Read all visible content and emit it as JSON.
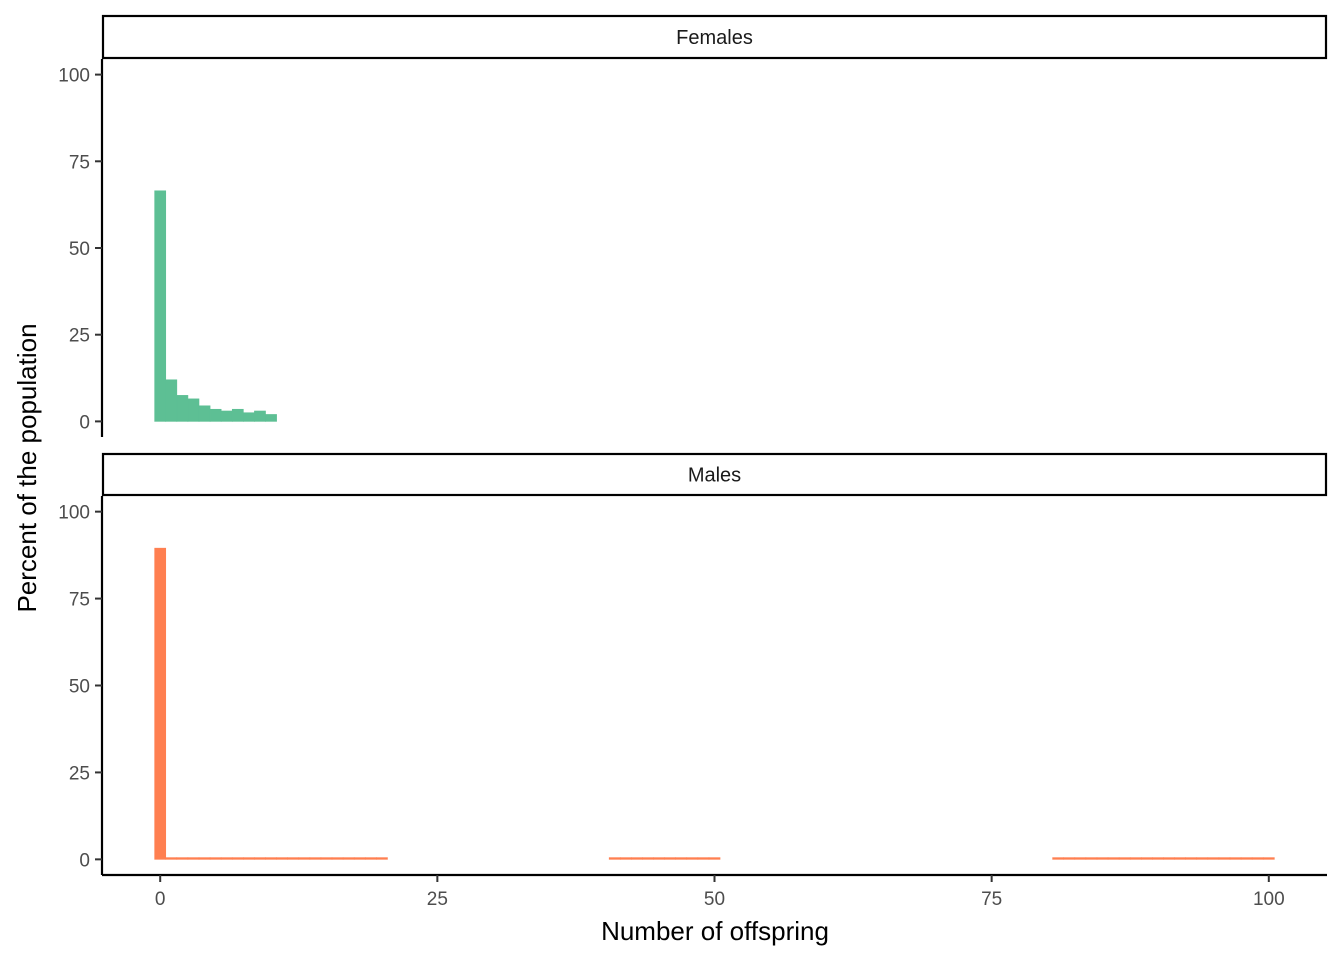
{
  "chart_data": {
    "type": "bar",
    "xlabel": "Number of offspring",
    "ylabel": "Percent of the population",
    "xlim": [
      -5.25,
      105.25
    ],
    "ylim": [
      -4.5,
      104.5
    ],
    "x_ticks": [
      0,
      25,
      50,
      75,
      100
    ],
    "y_ticks": [
      0,
      25,
      50,
      75,
      100
    ],
    "bin_width": 1,
    "grid": false,
    "panels": [
      {
        "name": "Females",
        "color": "#5DBF94",
        "bins": [
          {
            "x": 0,
            "y": 66.5
          },
          {
            "x": 1,
            "y": 12.0
          },
          {
            "x": 2,
            "y": 7.5
          },
          {
            "x": 3,
            "y": 6.5
          },
          {
            "x": 4,
            "y": 4.5
          },
          {
            "x": 5,
            "y": 3.5
          },
          {
            "x": 6,
            "y": 3.0
          },
          {
            "x": 7,
            "y": 3.5
          },
          {
            "x": 8,
            "y": 2.5
          },
          {
            "x": 9,
            "y": 3.0
          },
          {
            "x": 10,
            "y": 2.0
          }
        ]
      },
      {
        "name": "Males",
        "color": "#FF7F50",
        "bins": [
          {
            "x": 0,
            "y": 89.5
          },
          {
            "x": 1,
            "y": 0.5
          },
          {
            "x": 2,
            "y": 0.5
          },
          {
            "x": 3,
            "y": 0.5
          },
          {
            "x": 4,
            "y": 0.5
          },
          {
            "x": 5,
            "y": 0.5
          },
          {
            "x": 6,
            "y": 0.5
          },
          {
            "x": 7,
            "y": 0.5
          },
          {
            "x": 8,
            "y": 0.5
          },
          {
            "x": 9,
            "y": 0.5
          },
          {
            "x": 10,
            "y": 0.5
          },
          {
            "x": 11,
            "y": 0.5
          },
          {
            "x": 12,
            "y": 0.5
          },
          {
            "x": 13,
            "y": 0.5
          },
          {
            "x": 14,
            "y": 0.5
          },
          {
            "x": 15,
            "y": 0.5
          },
          {
            "x": 16,
            "y": 0.5
          },
          {
            "x": 17,
            "y": 0.5
          },
          {
            "x": 18,
            "y": 0.5
          },
          {
            "x": 19,
            "y": 0.5
          },
          {
            "x": 20,
            "y": 0.5
          },
          {
            "x": 41,
            "y": 0.5
          },
          {
            "x": 42,
            "y": 0.5
          },
          {
            "x": 43,
            "y": 0.5
          },
          {
            "x": 44,
            "y": 0.5
          },
          {
            "x": 45,
            "y": 0.5
          },
          {
            "x": 46,
            "y": 0.5
          },
          {
            "x": 47,
            "y": 0.5
          },
          {
            "x": 48,
            "y": 0.5
          },
          {
            "x": 49,
            "y": 0.5
          },
          {
            "x": 50,
            "y": 0.5
          },
          {
            "x": 81,
            "y": 0.5
          },
          {
            "x": 82,
            "y": 0.5
          },
          {
            "x": 83,
            "y": 0.5
          },
          {
            "x": 84,
            "y": 0.5
          },
          {
            "x": 85,
            "y": 0.5
          },
          {
            "x": 86,
            "y": 0.5
          },
          {
            "x": 87,
            "y": 0.5
          },
          {
            "x": 88,
            "y": 0.5
          },
          {
            "x": 89,
            "y": 0.5
          },
          {
            "x": 90,
            "y": 0.5
          },
          {
            "x": 91,
            "y": 0.5
          },
          {
            "x": 92,
            "y": 0.5
          },
          {
            "x": 93,
            "y": 0.5
          },
          {
            "x": 94,
            "y": 0.5
          },
          {
            "x": 95,
            "y": 0.5
          },
          {
            "x": 96,
            "y": 0.5
          },
          {
            "x": 97,
            "y": 0.5
          },
          {
            "x": 98,
            "y": 0.5
          },
          {
            "x": 99,
            "y": 0.5
          },
          {
            "x": 100,
            "y": 0.5
          }
        ]
      }
    ]
  }
}
